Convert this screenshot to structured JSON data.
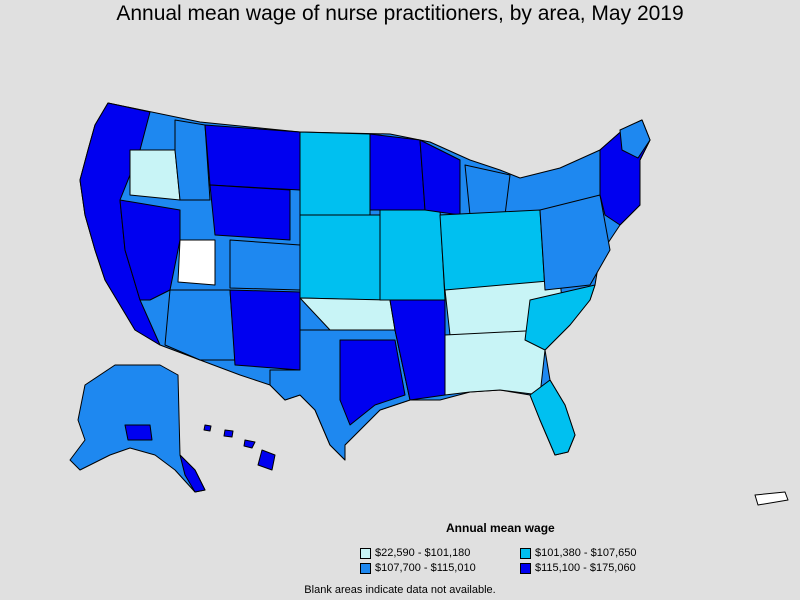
{
  "title": "Annual mean wage of nurse practitioners, by area, May 2019",
  "legend": {
    "title": "Annual mean wage",
    "items": [
      {
        "label": "$22,590 - $101,180",
        "color": "#c8f4f6"
      },
      {
        "label": "$101,380 - $107,650",
        "color": "#00c0f0"
      },
      {
        "label": "$107,700 - $115,010",
        "color": "#1e88f0"
      },
      {
        "label": "$115,100 - $175,060",
        "color": "#0000f0"
      }
    ]
  },
  "note": "Blank areas indicate data not available.",
  "colors": {
    "background": "#e0e0e0",
    "border": "#000000",
    "no_data": "#ffffff"
  }
}
